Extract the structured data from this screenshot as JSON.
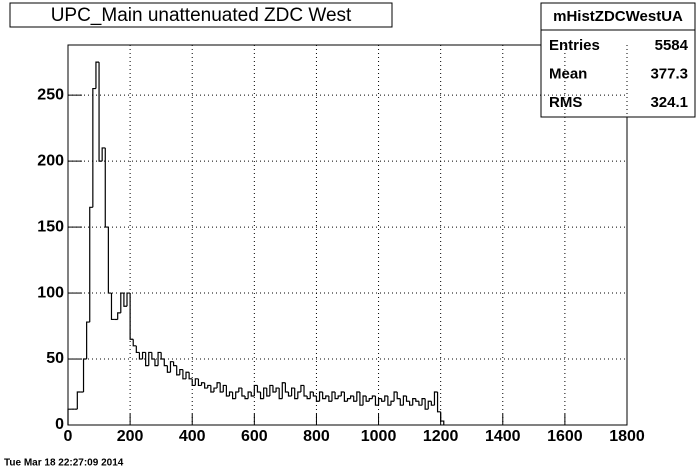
{
  "chart_data": {
    "type": "histogram",
    "title": "UPC_Main unattenuated ZDC West",
    "stats": {
      "title": "mHistZDCWestUA",
      "rows": [
        {
          "label": "Entries",
          "value": 5584
        },
        {
          "label": "Mean",
          "value": 377.3
        },
        {
          "label": "RMS",
          "value": 324.1
        }
      ]
    },
    "timestamp": "Tue Mar 18 22:27:09 2014",
    "bins": [
      0,
      10,
      20,
      30,
      40,
      50,
      60,
      70,
      80,
      90,
      100,
      110,
      120,
      130,
      140,
      150,
      160,
      170,
      180,
      190,
      200,
      210,
      220,
      230,
      240,
      250,
      260,
      270,
      280,
      290,
      300,
      310,
      320,
      330,
      340,
      350,
      360,
      370,
      380,
      390,
      400,
      410,
      420,
      430,
      440,
      450,
      460,
      470,
      480,
      490,
      500,
      510,
      520,
      530,
      540,
      550,
      560,
      570,
      580,
      590,
      600,
      610,
      620,
      630,
      640,
      650,
      660,
      670,
      680,
      690,
      700,
      710,
      720,
      730,
      740,
      750,
      760,
      770,
      780,
      790,
      800,
      810,
      820,
      830,
      840,
      850,
      860,
      870,
      880,
      890,
      900,
      910,
      920,
      930,
      940,
      950,
      960,
      970,
      980,
      990,
      1000,
      1010,
      1020,
      1030,
      1040,
      1050,
      1060,
      1070,
      1080,
      1090,
      1100,
      1110,
      1120,
      1130,
      1140,
      1150,
      1160,
      1170,
      1180,
      1190,
      1200,
      1210
    ],
    "values": [
      12,
      12,
      12,
      25,
      25,
      50,
      78,
      165,
      255,
      275,
      200,
      210,
      150,
      100,
      80,
      80,
      85,
      100,
      90,
      100,
      65,
      60,
      55,
      50,
      55,
      45,
      55,
      50,
      45,
      55,
      50,
      45,
      40,
      48,
      45,
      38,
      42,
      35,
      40,
      35,
      30,
      35,
      30,
      32,
      28,
      30,
      25,
      28,
      32,
      25,
      30,
      22,
      25,
      20,
      25,
      28,
      22,
      20,
      25,
      22,
      30,
      25,
      20,
      28,
      22,
      30,
      25,
      28,
      20,
      32,
      25,
      22,
      28,
      20,
      25,
      30,
      22,
      20,
      25,
      22,
      18,
      25,
      20,
      22,
      18,
      25,
      20,
      22,
      25,
      18,
      20,
      22,
      18,
      25,
      15,
      22,
      18,
      20,
      22,
      15,
      20,
      18,
      22,
      15,
      18,
      25,
      20,
      15,
      22,
      18,
      15,
      20,
      18,
      15,
      20,
      12,
      18,
      15,
      25,
      10,
      3
    ],
    "color": "#000000",
    "xlim": [
      0,
      1800
    ],
    "ylim": [
      0,
      288
    ],
    "xticks": [
      0,
      200,
      400,
      600,
      800,
      1000,
      1200,
      1400,
      1600,
      1800
    ],
    "yticks": [
      0,
      50,
      100,
      150,
      200,
      250
    ],
    "grid": true
  }
}
